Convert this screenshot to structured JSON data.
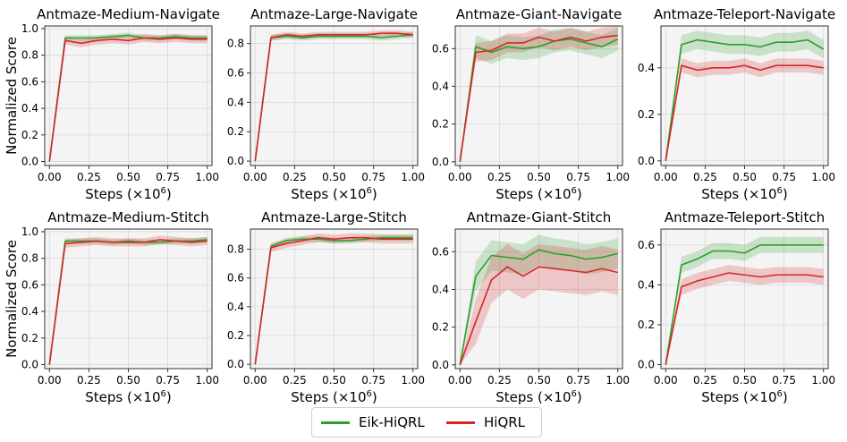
{
  "chart_data": [
    {
      "type": "line",
      "title": "Antmaze-Medium-Navigate",
      "xlabel": "Steps (×10^6)",
      "ylabel": "Normalized Score",
      "xlim": [
        -0.03,
        1.03
      ],
      "ylim": [
        -0.03,
        1.02
      ],
      "xticks": [
        "0.00",
        "0.25",
        "0.50",
        "0.75",
        "1.00"
      ],
      "yticks": [
        "0.0",
        "0.2",
        "0.4",
        "0.6",
        "0.8",
        "1.0"
      ],
      "x": [
        0,
        0.1,
        0.2,
        0.3,
        0.4,
        0.5,
        0.6,
        0.7,
        0.8,
        0.9,
        1.0
      ],
      "series": [
        {
          "name": "Eik-HiQRL",
          "color": "#2ca02c",
          "values": [
            0,
            0.93,
            0.93,
            0.93,
            0.94,
            0.95,
            0.93,
            0.93,
            0.94,
            0.93,
            0.93
          ],
          "band": 0.02
        },
        {
          "name": "HiQRL",
          "color": "#d62728",
          "values": [
            0,
            0.91,
            0.89,
            0.91,
            0.92,
            0.91,
            0.93,
            0.92,
            0.93,
            0.92,
            0.92
          ],
          "band": 0.03
        }
      ]
    },
    {
      "type": "line",
      "title": "Antmaze-Large-Navigate",
      "xlabel": "Steps (×10^6)",
      "ylabel": "",
      "xlim": [
        -0.03,
        1.03
      ],
      "ylim": [
        -0.03,
        0.92
      ],
      "xticks": [
        "0.00",
        "0.25",
        "0.50",
        "0.75",
        "1.00"
      ],
      "yticks": [
        "0.0",
        "0.2",
        "0.4",
        "0.6",
        "0.8"
      ],
      "x": [
        0,
        0.1,
        0.2,
        0.3,
        0.4,
        0.5,
        0.6,
        0.7,
        0.8,
        0.9,
        1.0
      ],
      "series": [
        {
          "name": "Eik-HiQRL",
          "color": "#2ca02c",
          "values": [
            0,
            0.84,
            0.85,
            0.84,
            0.85,
            0.85,
            0.85,
            0.85,
            0.84,
            0.85,
            0.86
          ],
          "band": 0.02
        },
        {
          "name": "HiQRL",
          "color": "#d62728",
          "values": [
            0,
            0.84,
            0.86,
            0.85,
            0.86,
            0.86,
            0.86,
            0.86,
            0.87,
            0.87,
            0.86
          ],
          "band": 0.02
        }
      ]
    },
    {
      "type": "line",
      "title": "Antmaze-Giant-Navigate",
      "xlabel": "Steps (×10^6)",
      "ylabel": "",
      "xlim": [
        -0.03,
        1.03
      ],
      "ylim": [
        -0.02,
        0.72
      ],
      "xticks": [
        "0.00",
        "0.25",
        "0.50",
        "0.75",
        "1.00"
      ],
      "yticks": [
        "0.0",
        "0.2",
        "0.4",
        "0.6"
      ],
      "x": [
        0,
        0.1,
        0.2,
        0.3,
        0.4,
        0.5,
        0.6,
        0.7,
        0.8,
        0.9,
        1.0
      ],
      "series": [
        {
          "name": "Eik-HiQRL",
          "color": "#2ca02c",
          "values": [
            0,
            0.61,
            0.58,
            0.61,
            0.6,
            0.61,
            0.64,
            0.65,
            0.63,
            0.61,
            0.65
          ],
          "band": 0.06
        },
        {
          "name": "HiQRL",
          "color": "#d62728",
          "values": [
            0,
            0.58,
            0.59,
            0.63,
            0.63,
            0.66,
            0.64,
            0.66,
            0.64,
            0.66,
            0.67
          ],
          "band": 0.05
        }
      ]
    },
    {
      "type": "line",
      "title": "Antmaze-Teleport-Navigate",
      "xlabel": "Steps (×10^6)",
      "ylabel": "",
      "xlim": [
        -0.03,
        1.03
      ],
      "ylim": [
        -0.02,
        0.58
      ],
      "xticks": [
        "0.00",
        "0.25",
        "0.50",
        "0.75",
        "1.00"
      ],
      "yticks": [
        "0.0",
        "0.2",
        "0.4"
      ],
      "x": [
        0,
        0.1,
        0.2,
        0.3,
        0.4,
        0.5,
        0.6,
        0.7,
        0.8,
        0.9,
        1.0
      ],
      "series": [
        {
          "name": "Eik-HiQRL",
          "color": "#2ca02c",
          "values": [
            0,
            0.5,
            0.52,
            0.51,
            0.5,
            0.5,
            0.49,
            0.51,
            0.51,
            0.52,
            0.48
          ],
          "band": 0.04
        },
        {
          "name": "HiQRL",
          "color": "#d62728",
          "values": [
            0,
            0.41,
            0.39,
            0.4,
            0.4,
            0.41,
            0.39,
            0.41,
            0.41,
            0.41,
            0.4
          ],
          "band": 0.03
        }
      ]
    },
    {
      "type": "line",
      "title": "Antmaze-Medium-Stitch",
      "xlabel": "Steps (×10^6)",
      "ylabel": "Normalized Score",
      "xlim": [
        -0.03,
        1.03
      ],
      "ylim": [
        -0.03,
        1.02
      ],
      "xticks": [
        "0.00",
        "0.25",
        "0.50",
        "0.75",
        "1.00"
      ],
      "yticks": [
        "0.0",
        "0.2",
        "0.4",
        "0.6",
        "0.8",
        "1.0"
      ],
      "x": [
        0,
        0.1,
        0.2,
        0.3,
        0.4,
        0.5,
        0.6,
        0.7,
        0.8,
        0.9,
        1.0
      ],
      "series": [
        {
          "name": "Eik-HiQRL",
          "color": "#2ca02c",
          "values": [
            0,
            0.93,
            0.93,
            0.93,
            0.92,
            0.93,
            0.92,
            0.92,
            0.93,
            0.93,
            0.94
          ],
          "band": 0.02
        },
        {
          "name": "HiQRL",
          "color": "#d62728",
          "values": [
            0,
            0.91,
            0.92,
            0.93,
            0.92,
            0.92,
            0.92,
            0.94,
            0.93,
            0.92,
            0.93
          ],
          "band": 0.03
        }
      ]
    },
    {
      "type": "line",
      "title": "Antmaze-Large-Stitch",
      "xlabel": "Steps (×10^6)",
      "ylabel": "",
      "xlim": [
        -0.03,
        1.03
      ],
      "ylim": [
        -0.03,
        0.94
      ],
      "xticks": [
        "0.00",
        "0.25",
        "0.50",
        "0.75",
        "1.00"
      ],
      "yticks": [
        "0.0",
        "0.2",
        "0.4",
        "0.6",
        "0.8"
      ],
      "x": [
        0,
        0.1,
        0.2,
        0.3,
        0.4,
        0.5,
        0.6,
        0.7,
        0.8,
        0.9,
        1.0
      ],
      "series": [
        {
          "name": "Eik-HiQRL",
          "color": "#2ca02c",
          "values": [
            0,
            0.82,
            0.86,
            0.87,
            0.87,
            0.86,
            0.86,
            0.87,
            0.88,
            0.88,
            0.88
          ],
          "band": 0.02
        },
        {
          "name": "HiQRL",
          "color": "#d62728",
          "values": [
            0,
            0.81,
            0.84,
            0.86,
            0.88,
            0.87,
            0.88,
            0.88,
            0.87,
            0.87,
            0.87
          ],
          "band": 0.03
        }
      ]
    },
    {
      "type": "line",
      "title": "Antmaze-Giant-Stitch",
      "xlabel": "Steps (×10^6)",
      "ylabel": "",
      "xlim": [
        -0.03,
        1.03
      ],
      "ylim": [
        -0.02,
        0.72
      ],
      "xticks": [
        "0.00",
        "0.25",
        "0.50",
        "0.75",
        "1.00"
      ],
      "yticks": [
        "0.0",
        "0.2",
        "0.4",
        "0.6"
      ],
      "x": [
        0,
        0.1,
        0.2,
        0.3,
        0.4,
        0.5,
        0.6,
        0.7,
        0.8,
        0.9,
        1.0
      ],
      "series": [
        {
          "name": "Eik-HiQRL",
          "color": "#2ca02c",
          "values": [
            0,
            0.47,
            0.58,
            0.57,
            0.56,
            0.61,
            0.59,
            0.58,
            0.56,
            0.57,
            0.59
          ],
          "band": 0.08
        },
        {
          "name": "HiQRL",
          "color": "#d62728",
          "values": [
            0,
            0.23,
            0.45,
            0.52,
            0.47,
            0.52,
            0.51,
            0.5,
            0.49,
            0.51,
            0.49
          ],
          "band": 0.12
        }
      ]
    },
    {
      "type": "line",
      "title": "Antmaze-Teleport-Stitch",
      "xlabel": "Steps (×10^6)",
      "ylabel": "",
      "xlim": [
        -0.03,
        1.03
      ],
      "ylim": [
        -0.02,
        0.68
      ],
      "xticks": [
        "0.00",
        "0.25",
        "0.50",
        "0.75",
        "1.00"
      ],
      "yticks": [
        "0.0",
        "0.2",
        "0.4",
        "0.6"
      ],
      "x": [
        0,
        0.1,
        0.2,
        0.3,
        0.4,
        0.5,
        0.6,
        0.7,
        0.8,
        0.9,
        1.0
      ],
      "series": [
        {
          "name": "Eik-HiQRL",
          "color": "#2ca02c",
          "values": [
            0,
            0.5,
            0.53,
            0.57,
            0.57,
            0.56,
            0.6,
            0.6,
            0.6,
            0.6,
            0.6
          ],
          "band": 0.04
        },
        {
          "name": "HiQRL",
          "color": "#d62728",
          "values": [
            0,
            0.39,
            0.42,
            0.44,
            0.46,
            0.45,
            0.44,
            0.45,
            0.45,
            0.45,
            0.44
          ],
          "band": 0.04
        }
      ]
    }
  ],
  "legend": {
    "placement": "bottom-center",
    "items": [
      {
        "label": "Eik-HiQRL",
        "color": "#2ca02c"
      },
      {
        "label": "HiQRL",
        "color": "#d62728"
      }
    ]
  }
}
